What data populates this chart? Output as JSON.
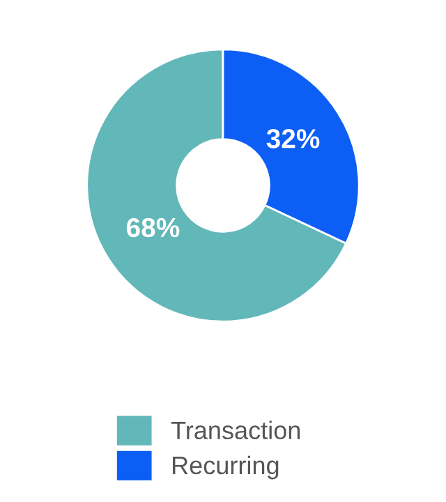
{
  "chart_data": {
    "type": "donut",
    "categories": [
      "Transaction",
      "Recurring"
    ],
    "values": [
      68,
      32
    ],
    "colors": [
      "#62b7b9",
      "#0d5ef5"
    ],
    "value_labels": [
      "68%",
      "32%"
    ],
    "legend": "bottom"
  }
}
